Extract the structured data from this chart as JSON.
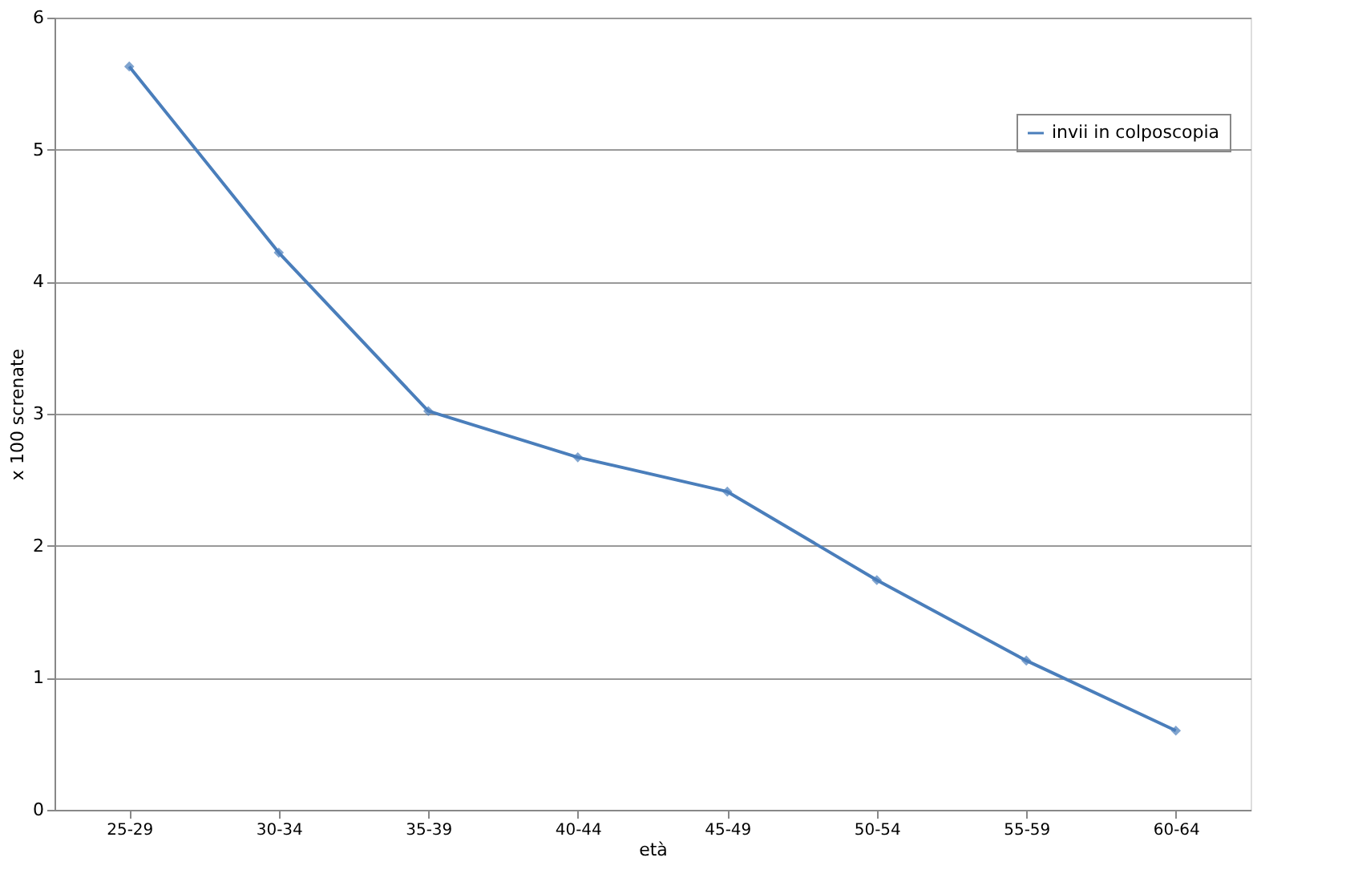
{
  "chart_data": {
    "type": "line",
    "xlabel": "età",
    "ylabel": "x 100 screnate",
    "categories": [
      "25-29",
      "30-34",
      "35-39",
      "40-44",
      "45-49",
      "50-54",
      "55-59",
      "60-64"
    ],
    "series": [
      {
        "name": "invii in colposcopia",
        "color": "#4a7ebb",
        "values": [
          5.63,
          4.22,
          3.02,
          2.67,
          2.41,
          1.74,
          1.13,
          0.6
        ]
      }
    ],
    "ylim": [
      0,
      6
    ],
    "yticks": [
      0,
      1,
      2,
      3,
      4,
      5,
      6
    ],
    "grid": "y",
    "legend": "top right",
    "marker": "diamond",
    "line_style": "solid"
  }
}
